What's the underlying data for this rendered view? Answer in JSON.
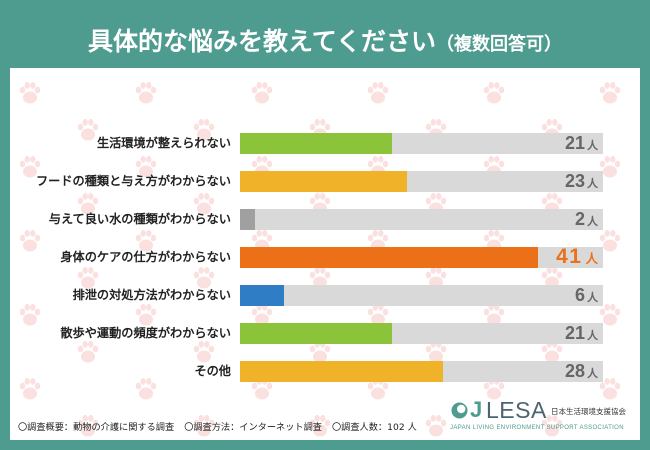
{
  "colors": {
    "background": "#4e9b8f",
    "panel": "#ffffff",
    "paw": "#fbe0e0",
    "title_text": "#ffffff"
  },
  "chart_data": {
    "type": "bar",
    "horizontal": true,
    "title": "具体的な悩みを教えてください",
    "title_note": "（複数回答可）",
    "categories": [
      "生活環境が整えられない",
      "フードの種類と与え方がわからない",
      "与えて良い水の種類がわからない",
      "身体のケアの仕方がわからない",
      "排泄の対処方法がわからない",
      "散歩や運動の頻度がわからない",
      "その他"
    ],
    "values": [
      21,
      23,
      2,
      41,
      6,
      21,
      28
    ],
    "unit": "人",
    "xlim": [
      0,
      50
    ],
    "grid": false,
    "legend": false,
    "bar_colors": [
      "#8bc33a",
      "#f0b229",
      "#a0a0a0",
      "#ec7017",
      "#2f7dc4",
      "#8bc33a",
      "#f0b229"
    ],
    "track_color": "#d9d9d9",
    "value_label_color": "#666666",
    "highlight_index": 3,
    "highlight_color": "#ec7017"
  },
  "footer": {
    "notes": [
      "〇調査概要：動物の介護に関する調査",
      "〇調査方法：インターネット調査",
      "〇調査人数：102 人"
    ]
  },
  "logo": {
    "icon": "jlesa-circle-logo-icon",
    "mark": "J",
    "name": "LESA",
    "name_ja": "日本生活環境支援協会",
    "name_en": "JAPAN LIVING ENVIRONMENT SUPPORT ASSOCIATION",
    "mark_color": "#4e9b8f",
    "name_color": "#4a6571"
  }
}
